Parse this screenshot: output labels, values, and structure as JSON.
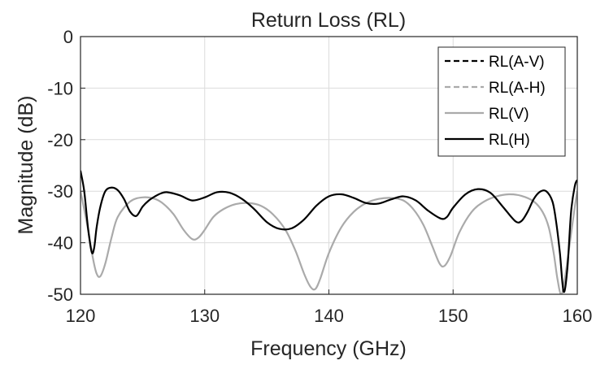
{
  "chart_data": {
    "type": "line",
    "title": "Return Loss (RL)",
    "xlabel": "Frequency (GHz)",
    "ylabel": "Magnitude (dB)",
    "xlim": [
      120,
      160
    ],
    "ylim": [
      -50,
      0
    ],
    "xticks": [
      120,
      130,
      140,
      150,
      160
    ],
    "yticks": [
      0,
      -10,
      -20,
      -30,
      -40,
      -50
    ],
    "xtick_labels": [
      "120",
      "130",
      "140",
      "150",
      "160"
    ],
    "ytick_labels": [
      "0",
      "-10",
      "-20",
      "-30",
      "-40",
      "-50"
    ],
    "grid": true,
    "legend_position": "top-right",
    "series": [
      {
        "name": "RL(A-V)",
        "color": "#000000",
        "dash": "dashed",
        "x": [],
        "y": []
      },
      {
        "name": "RL(A-H)",
        "color": "#aaaaaa",
        "dash": "dashed",
        "x": [],
        "y": []
      },
      {
        "name": "RL(V)",
        "color": "#aaaaaa",
        "dash": "solid",
        "x": [
          120,
          120.5,
          121,
          121.3,
          121.6,
          122,
          122.5,
          123,
          124,
          125,
          126,
          126.7,
          127.5,
          128.3,
          129,
          129.5,
          130,
          130.7,
          131.5,
          132.5,
          133.5,
          134.5,
          135.5,
          136.5,
          137.3,
          138,
          138.5,
          138.9,
          139.3,
          140,
          141,
          142,
          143,
          144,
          145,
          146,
          146.8,
          147.6,
          148.3,
          148.9,
          149.3,
          149.8,
          150.5,
          151.5,
          152.5,
          153.5,
          154.5,
          155.5,
          156.5,
          157.2,
          157.7,
          158.1,
          158.4,
          158.7,
          159,
          159.4,
          159.8,
          160
        ],
        "y": [
          -30,
          -36,
          -43,
          -46,
          -46.5,
          -44,
          -39,
          -35,
          -32,
          -31.2,
          -31.5,
          -32.5,
          -34.5,
          -37.5,
          -39.3,
          -39,
          -37.5,
          -35,
          -33.5,
          -32.5,
          -32.3,
          -32.8,
          -34.5,
          -37.5,
          -41.5,
          -46,
          -48.5,
          -49,
          -47,
          -42,
          -37,
          -34,
          -32.3,
          -31.5,
          -31.3,
          -31.8,
          -33.5,
          -36.5,
          -40.5,
          -44,
          -44.5,
          -42.5,
          -38,
          -34,
          -32,
          -31,
          -30.6,
          -30.9,
          -32,
          -34,
          -37,
          -42,
          -47,
          -50,
          -47,
          -40,
          -33,
          -30
        ]
      },
      {
        "name": "RL(H)",
        "color": "#000000",
        "dash": "solid",
        "x": [
          120,
          120.3,
          120.6,
          120.9,
          121.1,
          121.3,
          121.6,
          122,
          122.5,
          123,
          123.5,
          124,
          124.5,
          125,
          125.5,
          126,
          126.5,
          127,
          128,
          129,
          130,
          131,
          132,
          133,
          134,
          135,
          136,
          137,
          138,
          139,
          140,
          141,
          142,
          143,
          144,
          145,
          146,
          147,
          148,
          149,
          149.5,
          150,
          151,
          152,
          153,
          154,
          155,
          155.5,
          156,
          156.5,
          157,
          157.5,
          158,
          158.3,
          158.6,
          158.9,
          159.2,
          159.5,
          159.8,
          160
        ],
        "y": [
          -26,
          -30,
          -37,
          -41.8,
          -41,
          -37,
          -33,
          -30,
          -29.3,
          -29.8,
          -31.5,
          -34,
          -34.8,
          -33,
          -31.8,
          -31,
          -30.4,
          -30.2,
          -30.8,
          -31.8,
          -31.2,
          -30.2,
          -30.3,
          -31.5,
          -33.5,
          -36,
          -37.3,
          -37.2,
          -35.5,
          -32.8,
          -31,
          -30.6,
          -31.3,
          -32.3,
          -32.4,
          -31.6,
          -31,
          -31.8,
          -33.8,
          -35.3,
          -35,
          -33.2,
          -30.6,
          -29.6,
          -30.3,
          -33,
          -35.8,
          -35.8,
          -34,
          -31.5,
          -30.1,
          -30,
          -32,
          -36,
          -42,
          -49.5,
          -45,
          -34,
          -29,
          -27.8
        ]
      }
    ]
  }
}
